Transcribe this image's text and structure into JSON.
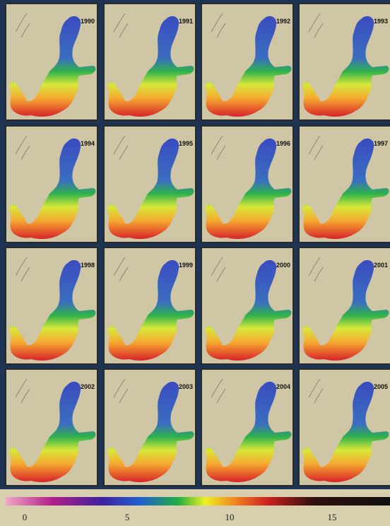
{
  "panels": [
    {
      "year": "1990"
    },
    {
      "year": "1991"
    },
    {
      "year": "1992"
    },
    {
      "year": "1993"
    },
    {
      "year": "1994"
    },
    {
      "year": "1995"
    },
    {
      "year": "1996"
    },
    {
      "year": "1997"
    },
    {
      "year": "1998"
    },
    {
      "year": "1999"
    },
    {
      "year": "2000"
    },
    {
      "year": "2001"
    },
    {
      "year": "2002"
    },
    {
      "year": "2003"
    },
    {
      "year": "2004"
    },
    {
      "year": "2005"
    }
  ],
  "colorbar": {
    "ticks": [
      0,
      5,
      10,
      15
    ]
  }
}
